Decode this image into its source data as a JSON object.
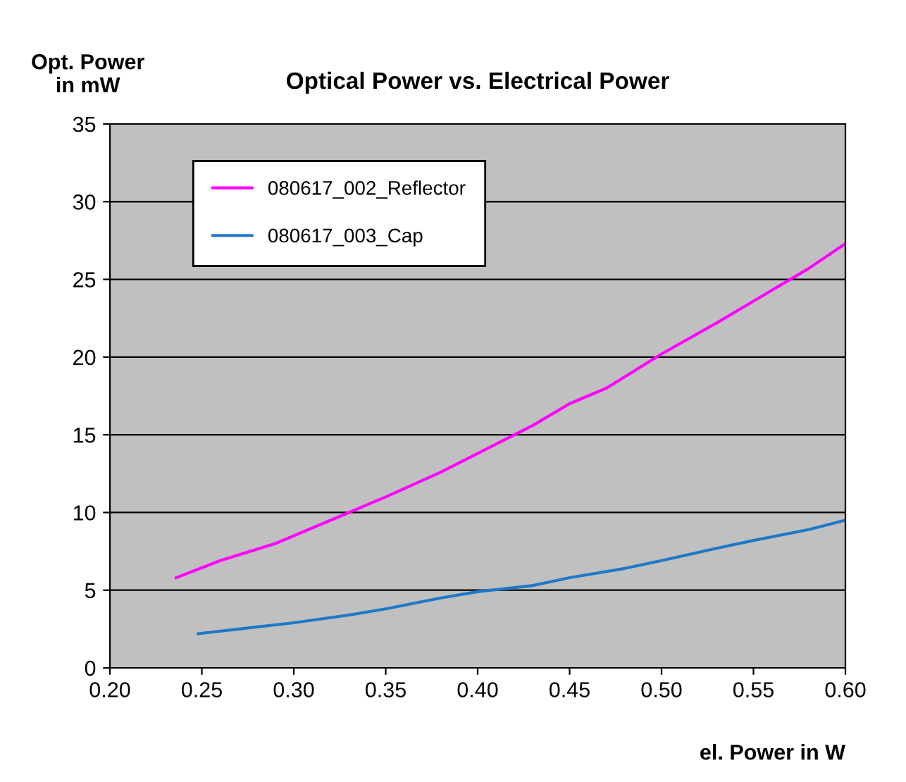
{
  "chart_data": {
    "type": "line",
    "title": "Optical Power vs. Electrical Power",
    "xlabel": "el. Power in W",
    "ylabel": "Opt. Power\nin mW",
    "series": [
      {
        "name": "080617_002_Reflector",
        "color": "#ff00ff",
        "x": [
          0.236,
          0.26,
          0.29,
          0.32,
          0.35,
          0.38,
          0.4,
          0.43,
          0.45,
          0.47,
          0.5,
          0.53,
          0.55,
          0.58,
          0.6
        ],
        "values": [
          5.8,
          6.9,
          8.0,
          9.5,
          11.0,
          12.6,
          13.8,
          15.6,
          17.0,
          18.0,
          20.2,
          22.2,
          23.6,
          25.7,
          27.3
        ]
      },
      {
        "name": "080617_003_Cap",
        "color": "#1f78c8",
        "x": [
          0.248,
          0.27,
          0.3,
          0.33,
          0.35,
          0.38,
          0.4,
          0.43,
          0.45,
          0.48,
          0.5,
          0.53,
          0.55,
          0.58,
          0.6
        ],
        "values": [
          2.2,
          2.5,
          2.9,
          3.4,
          3.8,
          4.5,
          4.9,
          5.3,
          5.8,
          6.4,
          6.9,
          7.7,
          8.2,
          8.9,
          9.5
        ]
      }
    ],
    "xlim": [
      0.2,
      0.6
    ],
    "xticks": [
      {
        "value": 0.2,
        "label": "0.20"
      },
      {
        "value": 0.25,
        "label": "0.25"
      },
      {
        "value": 0.3,
        "label": "0.30"
      },
      {
        "value": 0.35,
        "label": "0.35"
      },
      {
        "value": 0.4,
        "label": "0.40"
      },
      {
        "value": 0.45,
        "label": "0.45"
      },
      {
        "value": 0.5,
        "label": "0.50"
      },
      {
        "value": 0.55,
        "label": "0.55"
      },
      {
        "value": 0.6,
        "label": "0.60"
      }
    ],
    "ylim": [
      0,
      35
    ],
    "yticks": [
      0,
      5,
      10,
      15,
      20,
      25,
      30,
      35
    ],
    "grid": "y",
    "legend": "top left",
    "marker": "none",
    "line_style": "solid"
  }
}
